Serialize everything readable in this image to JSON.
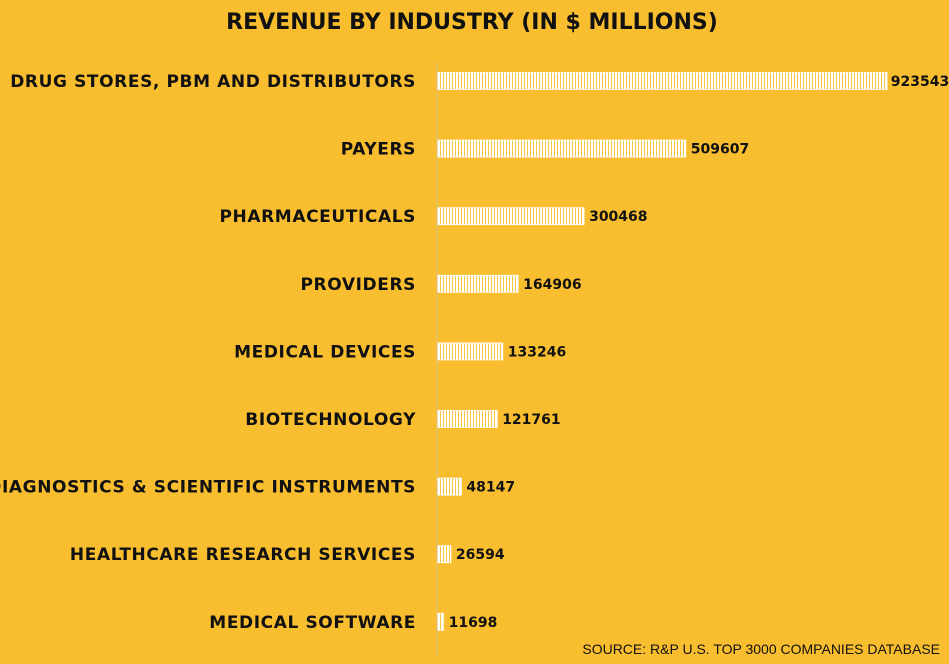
{
  "chart_data": {
    "type": "bar",
    "orientation": "horizontal",
    "title": "REVENUE BY INDUSTRY (IN $ MILLIONS)",
    "categories": [
      "DRUG STORES, PBM AND DISTRIBUTORS",
      "PAYERS",
      "PHARMACEUTICALS",
      "PROVIDERS",
      "MEDICAL DEVICES",
      "BIOTECHNOLOGY",
      "DIAGNOSTICS & SCIENTIFIC INSTRUMENTS",
      "HEALTHCARE RESEARCH SERVICES",
      "MEDICAL SOFTWARE"
    ],
    "values": [
      923543,
      509607,
      300468,
      164906,
      133246,
      121761,
      48147,
      26594,
      11698
    ],
    "value_labels": [
      "923543",
      "509607",
      "300468",
      "164906",
      "133246",
      "121761",
      "48147",
      "26594",
      "11698"
    ],
    "xlim": [
      0,
      923543
    ],
    "grid": false,
    "legend": "none",
    "bar_style": "white vertical-stripe pattern"
  },
  "source_note": "SOURCE: R&P U.S. TOP 3000 COMPANIES DATABASE",
  "colors": {
    "background": "#f8be2f",
    "bar_fill": "#ffffff",
    "text": "#111111",
    "axis": "#d8c18a"
  }
}
